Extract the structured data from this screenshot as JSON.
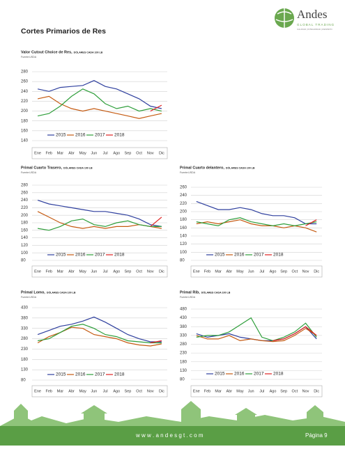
{
  "header": {
    "title": "Cortes Primarios de Res",
    "logo_name": "Andes",
    "logo_sub": "GLOBAL TRADING",
    "logo_tagline": "CALIDAD | INTEGRIDAD | RESPETO"
  },
  "footer": {
    "url": "w w w . a n d e s g t . c o m",
    "page": "Página 9"
  },
  "chart_data": [
    {
      "type": "line",
      "title": "Valor Cutout Choice de Res,",
      "subtitle": "DÓLARES CADA 100 LB",
      "source": "Fuente:USDA",
      "categories": [
        "Ene",
        "Feb",
        "Mar",
        "Abr",
        "May",
        "Jun",
        "Jul",
        "Ago",
        "Sep",
        "Oct",
        "Nov",
        "Dic"
      ],
      "ylim": [
        140,
        280
      ],
      "yticks": [
        140,
        160,
        180,
        200,
        220,
        240,
        260,
        280
      ],
      "grid": true,
      "legend": "lower left",
      "series": [
        {
          "name": "2015",
          "color": "#2e3f9e",
          "values": [
            245,
            240,
            248,
            250,
            252,
            262,
            250,
            245,
            235,
            225,
            210,
            205
          ]
        },
        {
          "name": "2016",
          "color": "#c55a11",
          "values": [
            225,
            230,
            215,
            205,
            200,
            205,
            200,
            195,
            190,
            185,
            190,
            195
          ]
        },
        {
          "name": "2017",
          "color": "#2e9e3a",
          "values": [
            190,
            195,
            210,
            230,
            245,
            235,
            215,
            205,
            210,
            200,
            205,
            200
          ]
        },
        {
          "name": "2018",
          "color": "#e02020",
          "values": [
            null,
            null,
            null,
            null,
            null,
            null,
            null,
            null,
            null,
            null,
            200,
            212
          ]
        }
      ]
    },
    {
      "type": "line",
      "title": "Primal Cuarto Trasero,",
      "subtitle": "DÓLARES CADA 100 LB",
      "source": "Fuente:USDA",
      "categories": [
        "Ene",
        "Feb",
        "Mar",
        "Abr",
        "May",
        "Jun",
        "Jul",
        "Ago",
        "Sep",
        "Oct",
        "Nov",
        "Dic"
      ],
      "ylim": [
        80,
        280
      ],
      "yticks": [
        80,
        100,
        120,
        140,
        160,
        180,
        200,
        220,
        240,
        260,
        280
      ],
      "grid": true,
      "legend": "lower left",
      "series": [
        {
          "name": "2015",
          "color": "#2e3f9e",
          "values": [
            240,
            230,
            225,
            220,
            215,
            210,
            210,
            205,
            200,
            190,
            175,
            170
          ]
        },
        {
          "name": "2016",
          "color": "#c55a11",
          "values": [
            210,
            195,
            180,
            170,
            165,
            170,
            165,
            170,
            170,
            175,
            170,
            165
          ]
        },
        {
          "name": "2017",
          "color": "#2e9e3a",
          "values": [
            165,
            160,
            170,
            185,
            190,
            175,
            170,
            180,
            185,
            175,
            170,
            170
          ]
        },
        {
          "name": "2018",
          "color": "#e02020",
          "values": [
            null,
            null,
            null,
            null,
            null,
            null,
            null,
            null,
            null,
            null,
            170,
            195
          ]
        }
      ]
    },
    {
      "type": "line",
      "title": "Primal Cuarto delantero,",
      "subtitle": "DÓLARES CADA 100 LB",
      "source": "Fuente:USDA",
      "categories": [
        "Ene",
        "Feb",
        "Mar",
        "Abr",
        "May",
        "Jun",
        "Jul",
        "Ago",
        "Sep",
        "Oct",
        "Nov",
        "Dic"
      ],
      "ylim": [
        80,
        260
      ],
      "yticks": [
        80,
        100,
        120,
        140,
        160,
        180,
        200,
        220,
        240,
        260
      ],
      "grid": true,
      "legend": "lower left",
      "series": [
        {
          "name": "2015",
          "color": "#2e3f9e",
          "values": [
            225,
            215,
            205,
            205,
            210,
            205,
            195,
            190,
            190,
            185,
            170,
            170
          ]
        },
        {
          "name": "2016",
          "color": "#c55a11",
          "values": [
            170,
            175,
            170,
            175,
            180,
            170,
            165,
            165,
            160,
            165,
            160,
            150
          ]
        },
        {
          "name": "2017",
          "color": "#2e9e3a",
          "values": [
            175,
            170,
            165,
            180,
            185,
            175,
            170,
            165,
            170,
            165,
            170,
            175
          ]
        },
        {
          "name": "2018",
          "color": "#e02020",
          "values": [
            null,
            null,
            null,
            null,
            null,
            null,
            null,
            null,
            null,
            null,
            165,
            180
          ]
        }
      ]
    },
    {
      "type": "line",
      "title": "Primal Lomo,",
      "subtitle": "DÓLARES CADA 100 LB",
      "source": "Fuente:USDA",
      "categories": [
        "Ene",
        "Feb",
        "Mar",
        "Abr",
        "May",
        "Jun",
        "Jul",
        "Ago",
        "Sep",
        "Oct",
        "Nov",
        "Dic"
      ],
      "ylim": [
        80,
        430
      ],
      "yticks": [
        80,
        130,
        180,
        230,
        280,
        330,
        380,
        430
      ],
      "grid": true,
      "legend": "lower left",
      "series": [
        {
          "name": "2015",
          "color": "#2e3f9e",
          "values": [
            300,
            320,
            340,
            350,
            365,
            385,
            360,
            330,
            300,
            280,
            265,
            265
          ]
        },
        {
          "name": "2016",
          "color": "#c55a11",
          "values": [
            260,
            290,
            310,
            335,
            330,
            300,
            290,
            280,
            260,
            250,
            245,
            255
          ]
        },
        {
          "name": "2017",
          "color": "#2e9e3a",
          "values": [
            270,
            280,
            310,
            340,
            350,
            330,
            300,
            290,
            270,
            265,
            260,
            260
          ]
        },
        {
          "name": "2018",
          "color": "#e02020",
          "values": [
            null,
            null,
            null,
            null,
            null,
            null,
            null,
            null,
            null,
            null,
            260,
            270
          ]
        }
      ]
    },
    {
      "type": "line",
      "title": "Primal Rib,",
      "subtitle": "DÓLARES CADA 100 LB",
      "source": "Fuente:USDA",
      "categories": [
        "Ene",
        "Feb",
        "Mar",
        "Abr",
        "May",
        "Jun",
        "Jul",
        "Ago",
        "Sep",
        "Oct",
        "Nov",
        "Dic"
      ],
      "ylim": [
        80,
        480
      ],
      "yticks": [
        80,
        130,
        180,
        230,
        280,
        330,
        380,
        430,
        480
      ],
      "grid": true,
      "legend": "lower left",
      "series": [
        {
          "name": "2015",
          "color": "#2e3f9e",
          "values": [
            340,
            320,
            330,
            340,
            320,
            310,
            300,
            300,
            310,
            340,
            380,
            310
          ]
        },
        {
          "name": "2016",
          "color": "#c55a11",
          "values": [
            330,
            310,
            310,
            330,
            300,
            310,
            300,
            295,
            300,
            330,
            370,
            330
          ]
        },
        {
          "name": "2017",
          "color": "#2e9e3a",
          "values": [
            320,
            330,
            330,
            350,
            390,
            430,
            320,
            300,
            320,
            350,
            400,
            320
          ]
        },
        {
          "name": "2018",
          "color": "#e02020",
          "values": [
            null,
            null,
            null,
            null,
            null,
            null,
            null,
            300,
            310,
            340,
            380,
            330
          ]
        }
      ]
    }
  ]
}
